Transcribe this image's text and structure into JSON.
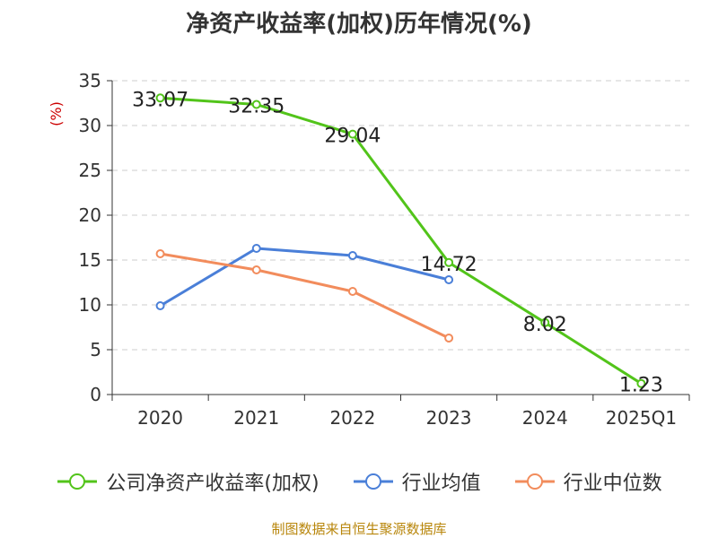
{
  "chart_data": {
    "type": "line",
    "title": "净资产收益率(加权)历年情况(%)",
    "ylabel": "(%)",
    "ylim": [
      0,
      35
    ],
    "yticks": [
      0,
      5,
      10,
      15,
      20,
      25,
      30,
      35
    ],
    "categories": [
      "2020",
      "2021",
      "2022",
      "2023",
      "2024",
      "2025Q1"
    ],
    "grid": true,
    "legend_position": "bottom",
    "series": [
      {
        "name": "公司净资产收益率(加权)",
        "color": "#52c41a",
        "values": [
          33.07,
          32.35,
          29.04,
          14.72,
          8.02,
          1.23
        ],
        "labels": [
          "33.07",
          "32.35",
          "29.04",
          "14.72",
          "8.02",
          "1.23"
        ]
      },
      {
        "name": "行业均值",
        "color": "#4a7fd8",
        "values": [
          9.9,
          16.3,
          15.5,
          12.8,
          null,
          null
        ]
      },
      {
        "name": "行业中位数",
        "color": "#f28c5c",
        "values": [
          15.7,
          13.9,
          11.5,
          6.3,
          null,
          null
        ]
      }
    ]
  },
  "source": "制图数据来自恒生聚源数据库"
}
